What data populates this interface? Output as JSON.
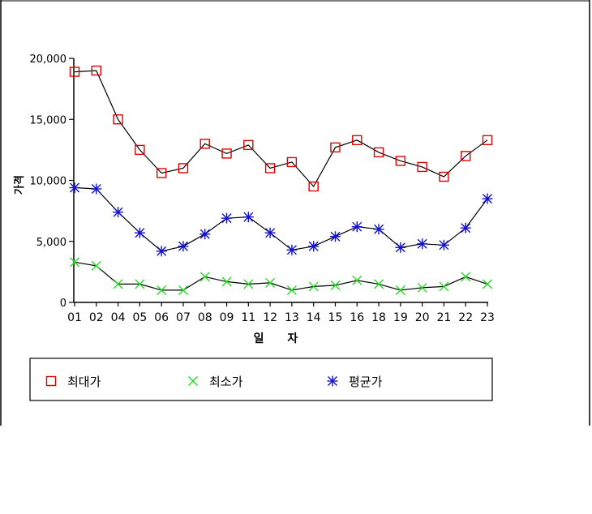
{
  "chart_data": {
    "type": "line",
    "xlabel": "일 자",
    "ylabel": "가격",
    "x": [
      "01",
      "02",
      "04",
      "05",
      "06",
      "07",
      "08",
      "09",
      "11",
      "12",
      "13",
      "14",
      "15",
      "16",
      "18",
      "19",
      "20",
      "21",
      "22",
      "23"
    ],
    "ylim": [
      0,
      20000
    ],
    "yticks": [
      0,
      5000,
      10000,
      15000,
      20000
    ],
    "ytick_labels": [
      "0",
      "5,000",
      "10,000",
      "15,000",
      "20,000"
    ],
    "grid": false,
    "legend_position": "bottom",
    "series": [
      {
        "name": "최대가",
        "marker": "square",
        "color": "#e00000",
        "values": [
          18900,
          19000,
          15000,
          12500,
          10600,
          11000,
          13000,
          12200,
          12900,
          11000,
          11500,
          9500,
          12700,
          13300,
          12300,
          11600,
          11100,
          10300,
          12000,
          13300
        ]
      },
      {
        "name": "최소가",
        "marker": "x",
        "color": "#22dd22",
        "values": [
          3300,
          3000,
          1500,
          1500,
          1000,
          1000,
          2100,
          1700,
          1500,
          1600,
          1000,
          1300,
          1400,
          1800,
          1500,
          1000,
          1200,
          1300,
          2100,
          1500
        ]
      },
      {
        "name": "평균가",
        "marker": "asterisk",
        "color": "#1010d0",
        "values": [
          9400,
          9300,
          7400,
          5700,
          4200,
          4600,
          5600,
          6900,
          7000,
          5700,
          4300,
          4600,
          5400,
          6200,
          6000,
          4500,
          4800,
          4700,
          6100,
          8500
        ]
      }
    ]
  }
}
